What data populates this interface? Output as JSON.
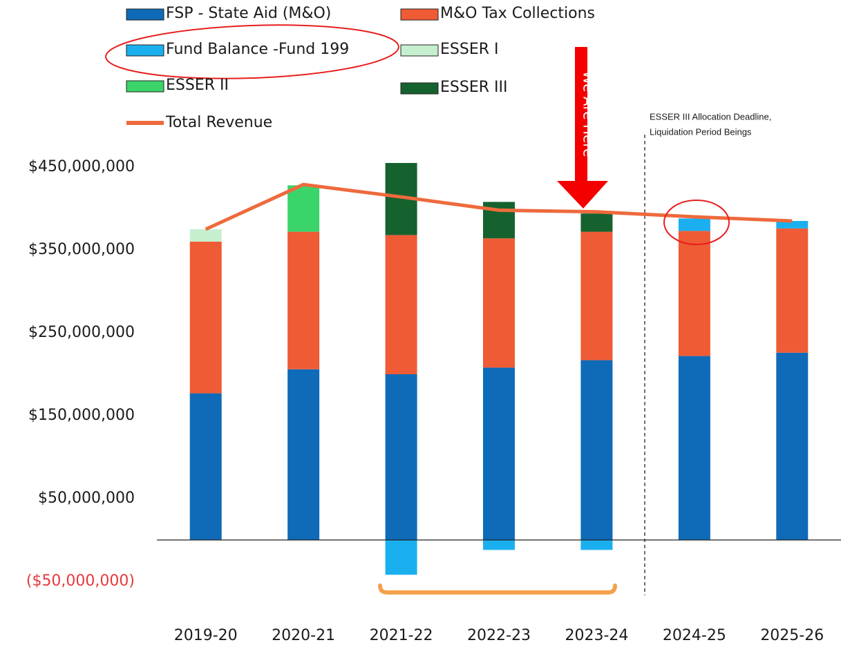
{
  "chart_data": {
    "type": "bar",
    "categories": [
      "2019-20",
      "2020-21",
      "2021-22",
      "2022-23",
      "2023-24",
      "2024-25",
      "2025-26"
    ],
    "series": [
      {
        "name": "FSP - State Aid (M&O)",
        "color": "#0f6bb8",
        "values": [
          177000000,
          206000000,
          200000000,
          208000000,
          217000000,
          222000000,
          226000000
        ]
      },
      {
        "name": "M&O Tax Collections",
        "color": "#ef5b35",
        "values": [
          183000000,
          166000000,
          168000000,
          156000000,
          155000000,
          151000000,
          150000000
        ]
      },
      {
        "name": "Fund Balance -Fund 199",
        "color": "#1ab0f0",
        "values": [
          null,
          null,
          -42000000,
          -12000000,
          -12000000,
          15000000,
          9000000
        ]
      },
      {
        "name": "ESSER I",
        "color": "#c6efcf",
        "values": [
          15000000,
          null,
          null,
          null,
          null,
          null,
          null
        ]
      },
      {
        "name": "ESSER II",
        "color": "#3bd46b",
        "values": [
          null,
          56000000,
          null,
          null,
          null,
          null,
          null
        ]
      },
      {
        "name": "ESSER III",
        "color": "#15622e",
        "values": [
          null,
          null,
          87000000,
          44000000,
          22000000,
          null,
          null
        ]
      },
      {
        "name": "Total Revenue",
        "type": "line",
        "color": "#ee6a3c",
        "values": [
          375000000,
          429000000,
          414000000,
          398000000,
          396000000,
          390000000,
          385000000
        ]
      }
    ],
    "ylim": [
      -70000000,
      490000000
    ],
    "yticks": [
      {
        "value": 450000000,
        "label": "$450,000,000"
      },
      {
        "value": 350000000,
        "label": "$350,000,000"
      },
      {
        "value": 250000000,
        "label": "$250,000,000"
      },
      {
        "value": 150000000,
        "label": "$150,000,000"
      },
      {
        "value": 50000000,
        "label": "$50,000,000"
      },
      {
        "value": -50000000,
        "label": "($50,000,000)"
      }
    ],
    "negative_tick_color": "#e8383d",
    "grid": false,
    "annotations": {
      "we_are_here": "We Are Here",
      "deadline": [
        "ESSER III Allocation Deadline,",
        "Liquidation Period Beings"
      ]
    }
  }
}
